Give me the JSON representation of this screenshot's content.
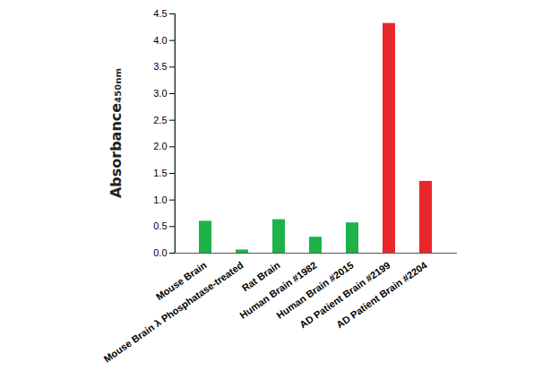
{
  "chart_data": {
    "type": "bar",
    "y_label": "Absorbance₄₅₀ₙₘ",
    "categories": [
      "Mouse Brain",
      "Mouse Brain λ Phosphatase-treated",
      "Rat Brain",
      "Human Brain #1982",
      "Human Brain #2015",
      "AD Patient Brain #2199",
      "AD Patient Brain #2204"
    ],
    "values": [
      0.6,
      0.06,
      0.63,
      0.3,
      0.57,
      4.32,
      1.35
    ],
    "colors": [
      "#1db34a",
      "#1db34a",
      "#1db34a",
      "#1db34a",
      "#1db34a",
      "#e8262b",
      "#e8262b"
    ],
    "ylim": [
      0,
      4.5
    ],
    "yticks": [
      {
        "value": 0,
        "label": "0.0"
      },
      {
        "value": 0.5,
        "label": "0.5"
      },
      {
        "value": 1,
        "label": "1.0"
      },
      {
        "value": 1.5,
        "label": "1.5"
      },
      {
        "value": 2,
        "label": "2.0"
      },
      {
        "value": 2.5,
        "label": "2.5"
      },
      {
        "value": 3,
        "label": "3.0"
      },
      {
        "value": 3.5,
        "label": "3.5"
      },
      {
        "value": 4,
        "label": "4.0"
      },
      {
        "value": 4.5,
        "label": "4.5"
      }
    ],
    "grid": false
  }
}
